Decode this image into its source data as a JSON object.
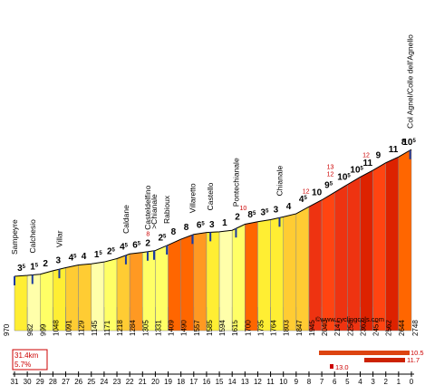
{
  "chart_data": {
    "type": "area",
    "x_ticks_km": [
      31,
      30,
      29,
      28,
      27,
      26,
      25,
      24,
      23,
      22,
      21,
      20,
      19,
      18,
      17,
      16,
      15,
      14,
      13,
      12,
      11,
      10,
      9,
      8,
      7,
      6,
      5,
      4,
      3,
      2,
      1,
      0
    ],
    "altitudes": [
      {
        "km": 31,
        "alt": "970"
      },
      {
        "km": 30,
        "alt": "982"
      },
      {
        "km": 29,
        "alt": "999"
      },
      {
        "km": 28,
        "alt": "1048"
      },
      {
        "km": 27,
        "alt": "1091"
      },
      {
        "km": 26,
        "alt": "1129"
      },
      {
        "km": 25,
        "alt": "1145"
      },
      {
        "km": 24,
        "alt": "1171"
      },
      {
        "km": 23,
        "alt": "1218"
      },
      {
        "km": 22,
        "alt": "1284"
      },
      {
        "km": 21,
        "alt": "1305"
      },
      {
        "km": 20,
        "alt": "1331"
      },
      {
        "km": 19,
        "alt": "1409"
      },
      {
        "km": 18,
        "alt": "1490"
      },
      {
        "km": 17,
        "alt": "1557"
      },
      {
        "km": 16,
        "alt": "1585"
      },
      {
        "km": 15,
        "alt": "1594"
      },
      {
        "km": 14,
        "alt": "1615"
      },
      {
        "km": 13,
        "alt": "1700"
      },
      {
        "km": 12,
        "alt": "1735"
      },
      {
        "km": 11,
        "alt": "1764"
      },
      {
        "km": 10,
        "alt": "1803"
      },
      {
        "km": 9,
        "alt": "1847"
      },
      {
        "km": 8,
        "alt": "1945"
      },
      {
        "km": 7,
        "alt": "2040"
      },
      {
        "km": 6,
        "alt": "2147"
      },
      {
        "km": 5,
        "alt": "2256"
      },
      {
        "km": 4,
        "alt": "2362"
      },
      {
        "km": 3,
        "alt": "2457"
      },
      {
        "km": 2,
        "alt": "2562"
      },
      {
        "km": 1,
        "alt": "2644"
      },
      {
        "km": 0,
        "alt": "2748"
      }
    ],
    "segments": [
      {
        "km_start": 31,
        "grade": "3",
        "half": "5"
      },
      {
        "km_start": 30,
        "grade": "1",
        "half": "5"
      },
      {
        "km_start": 29,
        "grade": "2",
        "half": ""
      },
      {
        "km_start": 28,
        "grade": "3",
        "half": ""
      },
      {
        "km_start": 27,
        "grade": "4",
        "half": "5"
      },
      {
        "km_start": 26,
        "grade": "4",
        "half": ""
      },
      {
        "km_start": 25,
        "grade": "1",
        "half": "5"
      },
      {
        "km_start": 24,
        "grade": "2",
        "half": "5"
      },
      {
        "km_start": 23,
        "grade": "4",
        "half": "5"
      },
      {
        "km_start": 22,
        "grade": "6",
        "half": "5"
      },
      {
        "km_start": 21,
        "grade": "2",
        "half": ""
      },
      {
        "km_start": 20,
        "grade": "2",
        "half": "5"
      },
      {
        "km_start": 19,
        "grade": "8",
        "half": ""
      },
      {
        "km_start": 18,
        "grade": "8",
        "half": ""
      },
      {
        "km_start": 17,
        "grade": "6",
        "half": "5"
      },
      {
        "km_start": 16,
        "grade": "3",
        "half": ""
      },
      {
        "km_start": 15,
        "grade": "1",
        "half": ""
      },
      {
        "km_start": 14,
        "grade": "2",
        "half": ""
      },
      {
        "km_start": 13,
        "grade": "8",
        "half": "5"
      },
      {
        "km_start": 12,
        "grade": "3",
        "half": "5"
      },
      {
        "km_start": 11,
        "grade": "3",
        "half": ""
      },
      {
        "km_start": 10,
        "grade": "4",
        "half": ""
      },
      {
        "km_start": 9,
        "grade": "4",
        "half": "5"
      },
      {
        "km_start": 8,
        "grade": "10",
        "half": ""
      },
      {
        "km_start": 7,
        "grade": "9",
        "half": "5"
      },
      {
        "km_start": 6,
        "grade": "10",
        "half": "5"
      },
      {
        "km_start": 5,
        "grade": "10",
        "half": "5"
      },
      {
        "km_start": 4,
        "grade": "11",
        "half": ""
      },
      {
        "km_start": 3,
        "grade": "9",
        "half": ""
      },
      {
        "km_start": 2,
        "grade": "11",
        "half": ""
      },
      {
        "km_start": 1,
        "grade": "8",
        "half": ""
      },
      {
        "km_start": 0.4,
        "grade": "10",
        "half": "5"
      }
    ],
    "max_grades": [
      {
        "km": 20.5,
        "label": "8"
      },
      {
        "km": 13.2,
        "label": "10"
      },
      {
        "km": 8.3,
        "label": "12"
      },
      {
        "km": 6.4,
        "label": "12"
      },
      {
        "km": 6.4,
        "label": "13"
      },
      {
        "km": 3.6,
        "label": "12"
      }
    ],
    "places": [
      {
        "km": 31,
        "name": "Sampeyre"
      },
      {
        "km": 29.6,
        "name": "Calchesio"
      },
      {
        "km": 27.5,
        "name": "Villar"
      },
      {
        "km": 22.3,
        "name": "Caldane"
      },
      {
        "km": 20.6,
        "name": "Casteldelfino"
      },
      {
        "km": 20.1,
        "name": ">Chianale"
      },
      {
        "km": 19.1,
        "name": "Rabioux"
      },
      {
        "km": 17.1,
        "name": "Villaretto"
      },
      {
        "km": 15.7,
        "name": "Castello"
      },
      {
        "km": 13.7,
        "name": "Pontechianale"
      },
      {
        "km": 10.3,
        "name": "Chianale"
      },
      {
        "km": 0.1,
        "name": "Col Agnel/Colle dell'Agnello"
      }
    ],
    "legend": {
      "values": [
        "10.5",
        "11.7",
        "13.0"
      ]
    },
    "summary": {
      "distance": "31.4km",
      "avg_grade": "5.7%"
    },
    "credit": "©www.cyclingcols.com",
    "ylim": [
      970,
      2748
    ]
  }
}
